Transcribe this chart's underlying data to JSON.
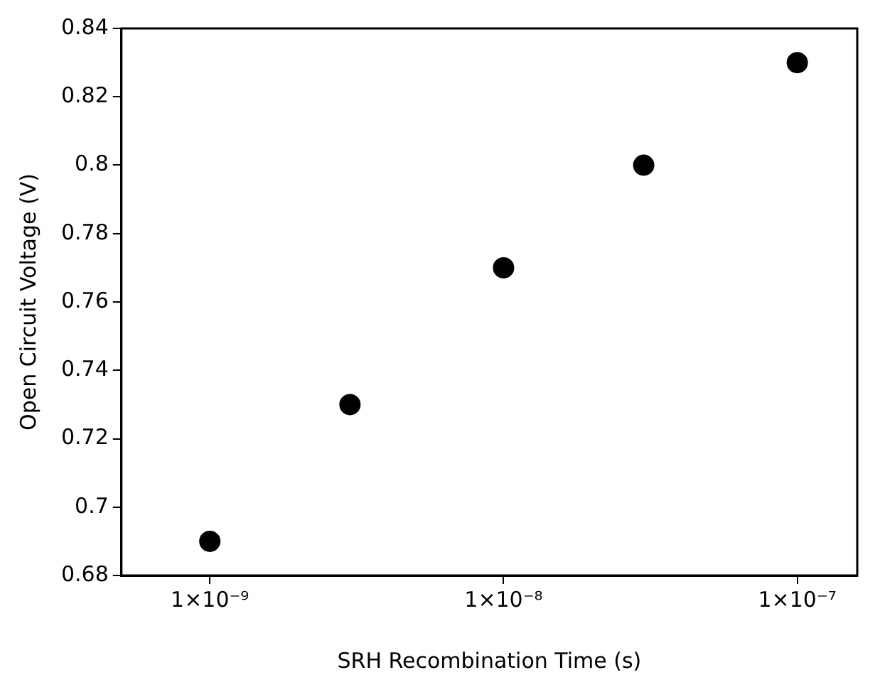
{
  "chart_data": {
    "type": "scatter",
    "xlabel": "SRH Recombination Time (s)",
    "ylabel": "Open Circuit Voltage (V)",
    "x": [
      1e-09,
      3e-09,
      1e-08,
      3e-08,
      1e-07
    ],
    "series": [
      {
        "color": "#000000",
        "values": [
          0.69,
          0.73,
          0.77,
          0.8,
          0.83
        ]
      }
    ],
    "log": "x",
    "xlim": [
      5e-10,
      1.6e-07
    ],
    "xticks": [
      {
        "value": 1e-09,
        "label": "1×10⁻⁹"
      },
      {
        "value": 1e-08,
        "label": "1×10⁻⁸"
      },
      {
        "value": 1e-07,
        "label": "1×10⁻⁷"
      }
    ],
    "ylim": [
      0.68,
      0.84
    ],
    "yticks": [
      0.68,
      0.7,
      0.72,
      0.74,
      0.76,
      0.78,
      0.8,
      0.82,
      0.84
    ],
    "grid": false,
    "legend": false,
    "marker": "circle"
  }
}
